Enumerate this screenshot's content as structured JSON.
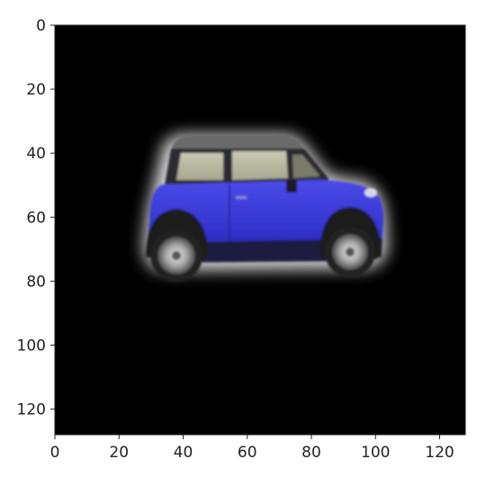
{
  "figure": {
    "type": "image-plot",
    "description_colors": {
      "background": "#000000",
      "car_body": "#3b3bd6",
      "car_glow": "#ffffff"
    }
  },
  "axes": {
    "x_ticks": [
      "0",
      "20",
      "40",
      "60",
      "80",
      "100",
      "120"
    ],
    "y_ticks": [
      "0",
      "20",
      "40",
      "60",
      "80",
      "100",
      "120"
    ],
    "xlim": [
      0,
      128
    ],
    "ylim": [
      128,
      0
    ]
  }
}
